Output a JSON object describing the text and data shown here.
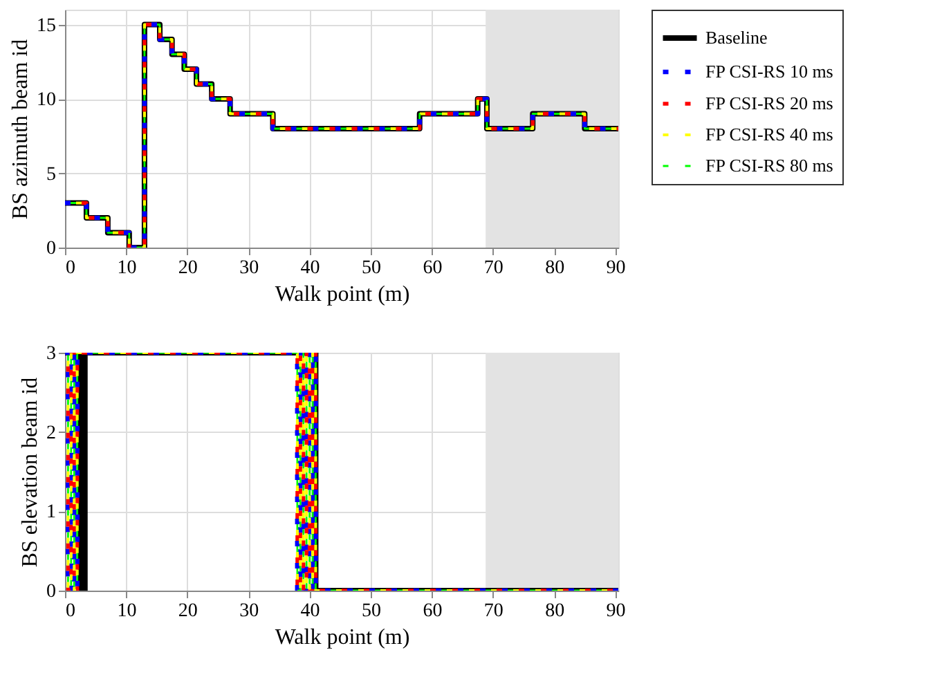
{
  "chart_data": [
    {
      "type": "step",
      "ylabel": "BS azimuth beam id",
      "xlabel": "Walk point (m)",
      "xlim": [
        0,
        90.5
      ],
      "xticks": [
        0,
        10,
        20,
        30,
        40,
        50,
        60,
        70,
        80,
        90
      ],
      "ylim": [
        0,
        16
      ],
      "yticks": [
        0,
        5,
        10,
        15
      ],
      "grid": true,
      "legend": "right",
      "bands": [
        {
          "axis": "x",
          "from": 68.8,
          "to": 90.5,
          "color": "#e3e3e3"
        }
      ],
      "series": [
        {
          "name": "Baseline",
          "color": "#000000",
          "line_style": "solid",
          "x": [
            0,
            3.5,
            7,
            10.5,
            13,
            15.5,
            17.5,
            19.5,
            21.5,
            24,
            27,
            34,
            58,
            67.5,
            69,
            76.5,
            85,
            90.5
          ],
          "values": [
            3,
            2,
            1,
            0,
            15,
            14,
            13,
            12,
            11,
            10,
            9,
            8,
            9,
            10,
            8,
            9,
            8,
            8
          ]
        },
        {
          "name": "FP CSI-RS 10 ms",
          "color": "#0000ff",
          "line_style": "dashed",
          "x": [
            0,
            3.5,
            7,
            10.5,
            13,
            15.5,
            17.5,
            19.5,
            21.5,
            24,
            27,
            34,
            58,
            67.5,
            69,
            76.5,
            85,
            90.5
          ],
          "values": [
            3,
            2,
            1,
            0,
            15,
            14,
            13,
            12,
            11,
            10,
            9,
            8,
            9,
            10,
            8,
            9,
            8,
            8
          ]
        },
        {
          "name": "FP CSI-RS 20 ms",
          "color": "#ff0000",
          "line_style": "dashed",
          "x": [
            0,
            3.5,
            7,
            10.5,
            13,
            15.5,
            17.5,
            19.5,
            21.5,
            24,
            27,
            34,
            58,
            67.5,
            69,
            76.5,
            85,
            90.5
          ],
          "values": [
            3,
            2,
            1,
            0,
            15,
            14,
            13,
            12,
            11,
            10,
            9,
            8,
            9,
            10,
            8,
            9,
            8,
            8
          ]
        },
        {
          "name": "FP CSI-RS 40 ms",
          "color": "#ffff00",
          "line_style": "dashed",
          "x": [
            0,
            3.5,
            7,
            10.5,
            13,
            15.5,
            17.5,
            19.5,
            21.5,
            24,
            27,
            34,
            58,
            67.5,
            69,
            76.5,
            85,
            90.5
          ],
          "values": [
            3,
            2,
            1,
            0,
            15,
            14,
            13,
            12,
            11,
            10,
            9,
            8,
            9,
            10,
            8,
            9,
            8,
            8
          ]
        },
        {
          "name": "FP CSI-RS 80 ms",
          "color": "#00ff00",
          "line_style": "dashed",
          "x": [
            0,
            3.5,
            7,
            10.5,
            13,
            15.5,
            17.5,
            19.5,
            21.5,
            24,
            27,
            34,
            58,
            67.5,
            69,
            76.5,
            85,
            90.5
          ],
          "values": [
            3,
            2,
            1,
            0,
            15,
            14,
            13,
            12,
            11,
            10,
            9,
            8,
            9,
            10,
            8,
            9,
            8,
            8
          ]
        }
      ]
    },
    {
      "type": "step",
      "ylabel": "BS elevation beam id",
      "xlabel": "Walk point (m)",
      "xlim": [
        0,
        90.5
      ],
      "xticks": [
        0,
        10,
        20,
        30,
        40,
        50,
        60,
        70,
        80,
        90
      ],
      "ylim": [
        0,
        3
      ],
      "yticks": [
        0,
        1,
        2,
        3
      ],
      "grid": true,
      "legend": "right",
      "bands": [
        {
          "axis": "x",
          "from": 68.8,
          "to": 90.5,
          "color": "#e3e3e3"
        }
      ],
      "series": [
        {
          "name": "Baseline",
          "color": "#000000",
          "line_style": "solid",
          "x": [
            0,
            2.5,
            2.75,
            3,
            3.25,
            41,
            90.5
          ],
          "values": [
            3,
            0,
            3,
            0,
            3,
            0,
            0
          ]
        },
        {
          "name": "FP CSI-RS 10 ms",
          "color": "#0000ff",
          "line_style": "dashed",
          "x": [
            0,
            0.5,
            1,
            1.5,
            2,
            38,
            38.5,
            39,
            39.5,
            40,
            40.5,
            41,
            90.5
          ],
          "values": [
            3,
            0,
            3,
            0,
            3,
            0,
            3,
            0,
            3,
            0,
            3,
            0,
            0
          ]
        },
        {
          "name": "FP CSI-RS 20 ms",
          "color": "#ff0000",
          "line_style": "dashed",
          "x": [
            0,
            0.5,
            1,
            1.5,
            2,
            38,
            38.5,
            39,
            39.5,
            40,
            40.5,
            41,
            90.5
          ],
          "values": [
            3,
            0,
            3,
            0,
            3,
            0,
            3,
            0,
            3,
            0,
            3,
            0,
            0
          ]
        },
        {
          "name": "FP CSI-RS 40 ms",
          "color": "#ffff00",
          "line_style": "dashed",
          "x": [
            0,
            0.5,
            1,
            1.5,
            2,
            38,
            38.5,
            39,
            39.5,
            40,
            40.5,
            41,
            90.5
          ],
          "values": [
            3,
            0,
            3,
            0,
            3,
            0,
            3,
            0,
            3,
            0,
            3,
            0,
            0
          ]
        },
        {
          "name": "FP CSI-RS 80 ms",
          "color": "#00ff00",
          "line_style": "dashed",
          "x": [
            0,
            0.5,
            1,
            1.5,
            2,
            38,
            38.5,
            39,
            39.5,
            40,
            40.5,
            41,
            90.5
          ],
          "values": [
            3,
            0,
            3,
            0,
            3,
            0,
            3,
            0,
            3,
            0,
            3,
            0,
            0
          ]
        }
      ]
    }
  ]
}
